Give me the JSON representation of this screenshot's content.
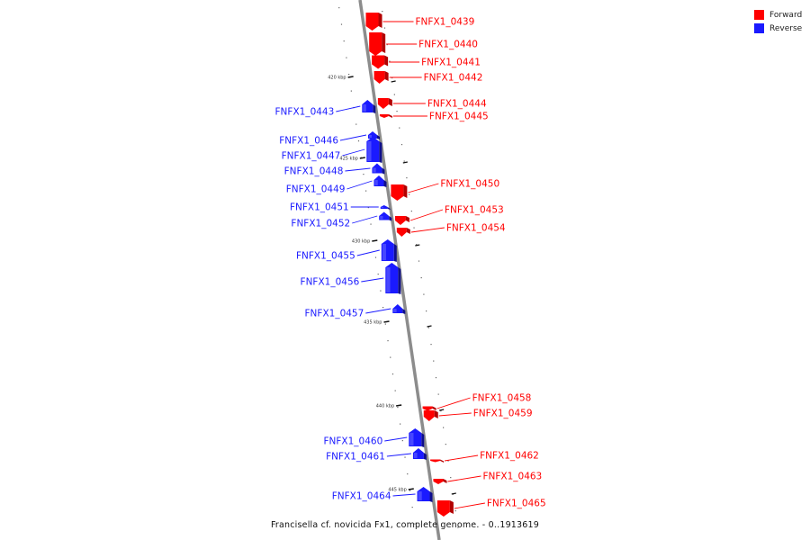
{
  "colors": {
    "forward": "#ff0000",
    "reverse": "#1a1aff",
    "backbone": "#8c8c8c"
  },
  "legend": [
    {
      "label": "Forward",
      "color": "#ff0000"
    },
    {
      "label": "Reverse",
      "color": "#1a1aff"
    }
  ],
  "caption": "Francisella cf. novicida Fx1, complete genome. - 0..1913619",
  "ticks": [
    "420 kbp",
    "425 kbp",
    "430 kbp",
    "435 kbp",
    "440 kbp",
    "445 kbp"
  ],
  "genes": [
    {
      "name": "FNFX1_0439",
      "strand": "forward"
    },
    {
      "name": "FNFX1_0440",
      "strand": "forward"
    },
    {
      "name": "FNFX1_0441",
      "strand": "forward"
    },
    {
      "name": "FNFX1_0442",
      "strand": "forward"
    },
    {
      "name": "FNFX1_0443",
      "strand": "reverse"
    },
    {
      "name": "FNFX1_0444",
      "strand": "forward"
    },
    {
      "name": "FNFX1_0445",
      "strand": "forward"
    },
    {
      "name": "FNFX1_0446",
      "strand": "reverse"
    },
    {
      "name": "FNFX1_0447",
      "strand": "reverse"
    },
    {
      "name": "FNFX1_0448",
      "strand": "reverse"
    },
    {
      "name": "FNFX1_0449",
      "strand": "reverse"
    },
    {
      "name": "FNFX1_0450",
      "strand": "forward"
    },
    {
      "name": "FNFX1_0451",
      "strand": "reverse"
    },
    {
      "name": "FNFX1_0452",
      "strand": "reverse"
    },
    {
      "name": "FNFX1_0453",
      "strand": "forward"
    },
    {
      "name": "FNFX1_0454",
      "strand": "forward"
    },
    {
      "name": "FNFX1_0455",
      "strand": "reverse"
    },
    {
      "name": "FNFX1_0456",
      "strand": "reverse"
    },
    {
      "name": "FNFX1_0457",
      "strand": "reverse"
    },
    {
      "name": "FNFX1_0458",
      "strand": "forward"
    },
    {
      "name": "FNFX1_0459",
      "strand": "forward"
    },
    {
      "name": "FNFX1_0460",
      "strand": "reverse"
    },
    {
      "name": "FNFX1_0461",
      "strand": "reverse"
    },
    {
      "name": "FNFX1_0462",
      "strand": "forward"
    },
    {
      "name": "FNFX1_0463",
      "strand": "forward"
    },
    {
      "name": "FNFX1_0464",
      "strand": "reverse"
    },
    {
      "name": "FNFX1_0465",
      "strand": "forward"
    }
  ]
}
